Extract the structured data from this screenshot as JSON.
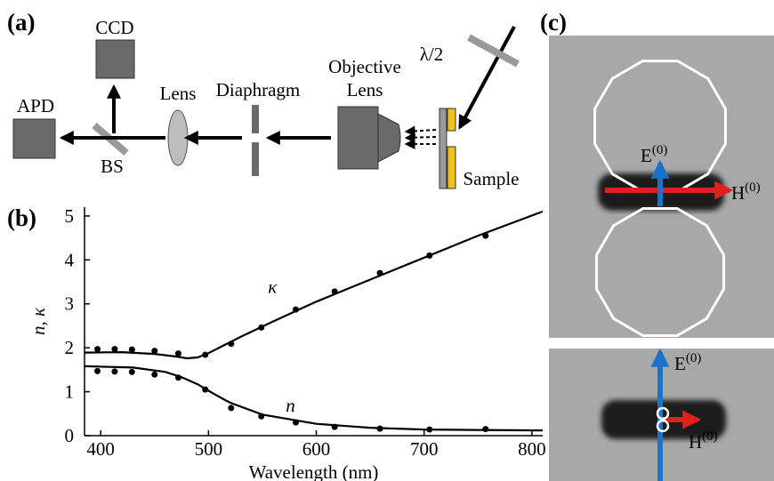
{
  "figure": {
    "panel_labels": [
      "(a)",
      "(b)",
      "(c)"
    ]
  },
  "diagram": {
    "ccd": "CCD",
    "apd": "APD",
    "bs": "BS",
    "lens": "Lens",
    "diaphragm": "Diaphragm",
    "objective": [
      "Objective",
      "Lens"
    ],
    "half_wave": "λ/2",
    "sample": "Sample"
  },
  "chart_data": {
    "type": "scatter",
    "x_label": "Wavelength (nm)",
    "y_label": "n, κ",
    "xlim": [
      385,
      810
    ],
    "ylim": [
      0,
      5.2
    ],
    "xticks": [
      400,
      500,
      600,
      700,
      800
    ],
    "yticks": [
      0,
      1,
      2,
      3,
      4,
      5
    ],
    "annotations": [
      "κ",
      "n"
    ],
    "series": [
      {
        "style": "markers",
        "color": "#000",
        "x": [
          397,
          413,
          429,
          450,
          472,
          497,
          521,
          549,
          581,
          617,
          659,
          705,
          757
        ],
        "values": [
          1.97,
          1.97,
          1.96,
          1.93,
          1.87,
          1.84,
          2.09,
          2.46,
          2.87,
          3.28,
          3.7,
          4.1,
          4.55
        ]
      },
      {
        "style": "markers",
        "color": "#000",
        "x": [
          397,
          413,
          429,
          450,
          472,
          497,
          521,
          549,
          581,
          617,
          659,
          705,
          757
        ],
        "values": [
          1.47,
          1.46,
          1.45,
          1.39,
          1.32,
          1.05,
          0.63,
          0.44,
          0.3,
          0.2,
          0.16,
          0.14,
          0.15
        ]
      },
      {
        "style": "line",
        "color": "#000",
        "x": [
          385,
          420,
          450,
          470,
          480,
          490,
          500,
          530,
          560,
          600,
          650,
          700,
          750,
          810
        ],
        "values": [
          1.89,
          1.9,
          1.86,
          1.8,
          1.76,
          1.78,
          1.88,
          2.25,
          2.6,
          3.05,
          3.55,
          4.05,
          4.55,
          5.1
        ]
      },
      {
        "style": "line",
        "color": "#000",
        "x": [
          385,
          430,
          460,
          475,
          490,
          505,
          520,
          550,
          600,
          650,
          700,
          750,
          810
        ],
        "values": [
          1.58,
          1.55,
          1.45,
          1.33,
          1.17,
          0.95,
          0.75,
          0.48,
          0.27,
          0.18,
          0.14,
          0.13,
          0.12
        ]
      }
    ]
  },
  "images": {
    "upper": {
      "e": {
        "base": "E",
        "sup": "(0)"
      },
      "h": {
        "base": "H",
        "sup": "(0)"
      }
    },
    "lower": {
      "e": {
        "base": "E",
        "sup": "(0)"
      },
      "h": {
        "base": "H",
        "sup": "(0)"
      }
    }
  }
}
